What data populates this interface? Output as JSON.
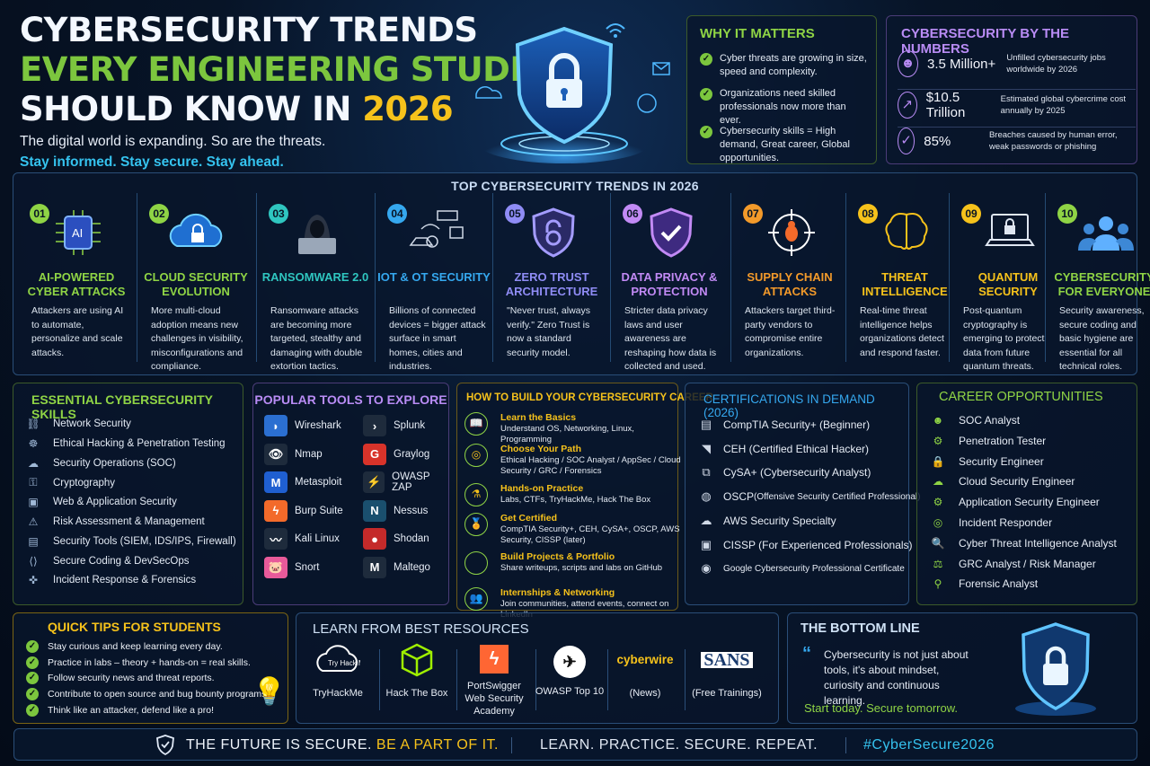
{
  "hero": {
    "line1": "CYBERSECURITY TRENDS",
    "line2": "EVERY ENGINEERING STUDENT",
    "line3a": "SHOULD KNOW IN ",
    "line3b": "2026",
    "subtitle": "The digital world is expanding. So are the threats.",
    "tagline": "Stay informed. Stay secure. Stay ahead."
  },
  "why": {
    "title": "WHY IT MATTERS",
    "items": [
      "Cyber threats are growing in size, speed and complexity.",
      "Organizations need skilled professionals now more than ever.",
      "Cybersecurity skills = High demand, Great career, Global opportunities."
    ]
  },
  "numbers": {
    "title": "CYBERSECURITY BY THE NUMBERS",
    "rows": [
      {
        "value": "3.5 Million+",
        "desc": "Unfilled cybersecurity jobs worldwide by 2026",
        "icon": "person-icon"
      },
      {
        "value": "$10.5 Trillion",
        "desc": "Estimated global cybercrime cost annually by 2025",
        "icon": "chart-icon"
      },
      {
        "value": "85%",
        "desc": "Breaches caused by human error, weak passwords or phishing",
        "icon": "shield-check-icon"
      }
    ]
  },
  "trends": {
    "title": "TOP CYBERSECURITY TRENDS IN 2026",
    "items": [
      {
        "num": "01",
        "title": "AI-POWERED CYBER ATTACKS",
        "desc": "Attackers are using AI to automate, personalize and scale attacks.",
        "color": "#8fd445",
        "icon": "ai-chip-icon"
      },
      {
        "num": "02",
        "title": "CLOUD SECURITY EVOLUTION",
        "desc": "More multi-cloud adoption means new challenges in visibility, misconfigurations and compliance.",
        "color": "#8fd445",
        "icon": "cloud-lock-icon"
      },
      {
        "num": "03",
        "title": "RANSOMWARE 2.0",
        "desc": "Ransomware attacks are becoming more targeted, stealthy and damaging with double extortion tactics.",
        "color": "#2fc6c0",
        "icon": "hacker-icon"
      },
      {
        "num": "04",
        "title": "IOT & OT SECURITY",
        "desc": "Billions of connected devices = bigger attack surface in smart homes, cities and industries.",
        "color": "#35a8ef",
        "icon": "iot-devices-icon"
      },
      {
        "num": "05",
        "title": "ZERO TRUST ARCHITECTURE",
        "desc": "\"Never trust, always verify.\" Zero Trust is now a standard security model.",
        "color": "#8f8cf5",
        "icon": "shield-lock-icon"
      },
      {
        "num": "06",
        "title": "DATA PRIVACY & PROTECTION",
        "desc": "Stricter data privacy laws and user awareness are reshaping how data is collected and used.",
        "color": "#c28af5",
        "icon": "shield-check-icon"
      },
      {
        "num": "07",
        "title": "SUPPLY CHAIN ATTACKS",
        "desc": "Attackers target third-party vendors to compromise entire organizations.",
        "color": "#f39a2a",
        "icon": "bug-target-icon"
      },
      {
        "num": "08",
        "title": "THREAT INTELLIGENCE",
        "desc": "Real-time threat intelligence helps organizations detect and respond faster.",
        "color": "#f6c21b",
        "icon": "brain-icon"
      },
      {
        "num": "09",
        "title": "QUANTUM SECURITY",
        "desc": "Post-quantum cryptography is emerging to protect data from future quantum threats.",
        "color": "#f6c21b",
        "icon": "laptop-lock-icon"
      },
      {
        "num": "10",
        "title": "CYBERSECURITY FOR EVERYONE",
        "desc": "Security awareness, secure coding and basic hygiene are essential for all technical roles.",
        "color": "#8fd445",
        "icon": "people-icon"
      }
    ]
  },
  "skills": {
    "title": "ESSENTIAL CYBERSECURITY SKILLS",
    "items": [
      "Network Security",
      "Ethical Hacking & Penetration Testing",
      "Security Operations (SOC)",
      "Cryptography",
      "Web & Application Security",
      "Risk Assessment & Management",
      "Security Tools (SIEM, IDS/IPS, Firewall)",
      "Secure Coding & DevSecOps",
      "Incident Response & Forensics"
    ]
  },
  "tools": {
    "title": "POPULAR TOOLS TO EXPLORE",
    "left": [
      "Wireshark",
      "Nmap",
      "Metasploit",
      "Burp Suite",
      "Kali Linux",
      "Snort"
    ],
    "right": [
      "Splunk",
      "Graylog",
      "OWASP ZAP",
      "Nessus",
      "Shodan",
      "Maltego"
    ]
  },
  "career_path": {
    "title": "HOW TO BUILD YOUR CYBERSECURITY CAREER",
    "steps": [
      {
        "title": "Learn the Basics",
        "desc": "Understand OS, Networking, Linux, Programming"
      },
      {
        "title": "Choose Your Path",
        "desc": "Ethical Hacking / SOC Analyst / AppSec / Cloud Security / GRC / Forensics"
      },
      {
        "title": "Hands-on Practice",
        "desc": "Labs, CTFs, TryHackMe, Hack The Box"
      },
      {
        "title": "Get Certified",
        "desc": "CompTIA Security+, CEH, CySA+, OSCP, AWS Security, CISSP (later)"
      },
      {
        "title": "Build Projects & Portfolio",
        "desc": "Share writeups, scripts and labs on GitHub"
      },
      {
        "title": "Internships & Networking",
        "desc": "Join communities, attend events, connect on LinkedIn"
      }
    ]
  },
  "certs": {
    "title": "CERTIFICATIONS IN DEMAND (2026)",
    "items": [
      {
        "main": "CompTIA Security+ (Beginner)",
        "small": ""
      },
      {
        "main": "CEH (Certified Ethical Hacker)",
        "small": ""
      },
      {
        "main": "CySA+ (Cybersecurity Analyst)",
        "small": ""
      },
      {
        "main": "OSCP ",
        "small": "(Offensive Security Certified Professional)"
      },
      {
        "main": "AWS Security Specialty",
        "small": ""
      },
      {
        "main": "CISSP (For Experienced Professionals)",
        "small": ""
      },
      {
        "main": "",
        "small": "Google Cybersecurity Professional Certificate"
      }
    ]
  },
  "careers": {
    "title": "CAREER OPPORTUNITIES",
    "items": [
      "SOC Analyst",
      "Penetration Tester",
      "Security Engineer",
      "Cloud Security Engineer",
      "Application Security Engineer",
      "Incident Responder",
      "Cyber Threat Intelligence Analyst",
      "GRC Analyst / Risk Manager",
      "Forensic Analyst"
    ]
  },
  "tips": {
    "title": "QUICK TIPS FOR STUDENTS",
    "items": [
      "Stay curious and keep learning every day.",
      "Practice in labs – theory + hands-on = real skills.",
      "Follow security news and threat reports.",
      "Contribute to open source and bug bounty programs.",
      "Think like an attacker, defend like a pro!"
    ]
  },
  "resources": {
    "title": "LEARN FROM BEST RESOURCES",
    "items": [
      {
        "label": "TryHackMe",
        "logo": "Try Hack Me"
      },
      {
        "label": "Hack The Box",
        "logo": ""
      },
      {
        "label": "PortSwigger Web Security Academy",
        "logo": ""
      },
      {
        "label": "OWASP Top 10",
        "logo": ""
      },
      {
        "label": "(News)",
        "logo": "cyberwire"
      },
      {
        "label": "(Free Trainings)",
        "logo": "SANS"
      }
    ]
  },
  "bottom": {
    "title": "THE BOTTOM LINE",
    "quote": "Cybersecurity is not just about tools, it's about mindset, curiosity and continuous learning.",
    "cta": "Start today. Secure tomorrow."
  },
  "footer": {
    "part1": "THE FUTURE IS SECURE. ",
    "part2": "BE A PART OF IT.",
    "part3": "LEARN. PRACTICE. SECURE. REPEAT.",
    "part4": "#CyberSecure2026"
  }
}
